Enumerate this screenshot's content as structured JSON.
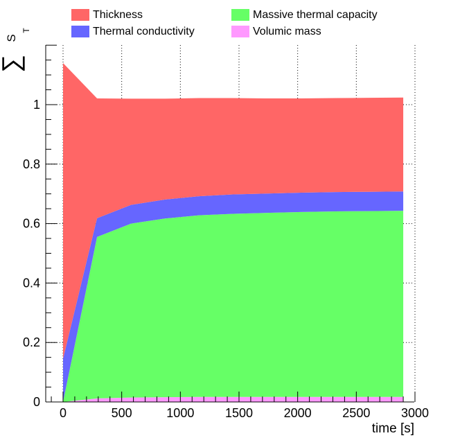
{
  "chart_data": {
    "type": "area",
    "stacked": true,
    "xlabel": "time [s]",
    "ylabel_symbol": "∑",
    "ylabel_sub": "S",
    "ylabel_subsub": "T",
    "xlim": [
      -100,
      3000
    ],
    "ylim": [
      0,
      1.2
    ],
    "grid": true,
    "legend_position": "top",
    "x": [
      0,
      290,
      580,
      870,
      1160,
      1450,
      1740,
      2030,
      2320,
      2610,
      2900
    ],
    "x_ticks": [
      0,
      500,
      1000,
      1500,
      2000,
      2500,
      3000
    ],
    "x_tick_labels": [
      "0",
      "500",
      "1000",
      "1500",
      "2000",
      "2500",
      "3000"
    ],
    "y_ticks": [
      0,
      0.2,
      0.4,
      0.6,
      0.8,
      1
    ],
    "y_tick_labels": [
      "0",
      "0.2",
      "0.4",
      "0.6",
      "0.8",
      "1"
    ],
    "series": [
      {
        "name": "Volumic mass",
        "color": "#ff99ff",
        "values": [
          0.0,
          0.012,
          0.015,
          0.016,
          0.017,
          0.017,
          0.017,
          0.017,
          0.017,
          0.017,
          0.017
        ]
      },
      {
        "name": "Massive thermal capacity",
        "color": "#66ff66",
        "values": [
          0.0,
          0.543,
          0.585,
          0.601,
          0.611,
          0.616,
          0.619,
          0.622,
          0.624,
          0.625,
          0.626
        ]
      },
      {
        "name": "Thermal conductivity",
        "color": "#6666ff",
        "values": [
          0.145,
          0.063,
          0.063,
          0.064,
          0.064,
          0.065,
          0.065,
          0.065,
          0.065,
          0.065,
          0.065
        ]
      },
      {
        "name": "Thickness",
        "color": "#ff6666",
        "values": [
          0.995,
          0.403,
          0.357,
          0.339,
          0.33,
          0.324,
          0.32,
          0.317,
          0.316,
          0.316,
          0.316
        ]
      }
    ]
  },
  "legend": {
    "items": [
      {
        "label": "Thickness",
        "color": "#ff6666"
      },
      {
        "label": "Massive thermal capacity",
        "color": "#66ff66"
      },
      {
        "label": "Thermal conductivity",
        "color": "#6666ff"
      },
      {
        "label": "Volumic mass",
        "color": "#ff99ff"
      }
    ]
  }
}
